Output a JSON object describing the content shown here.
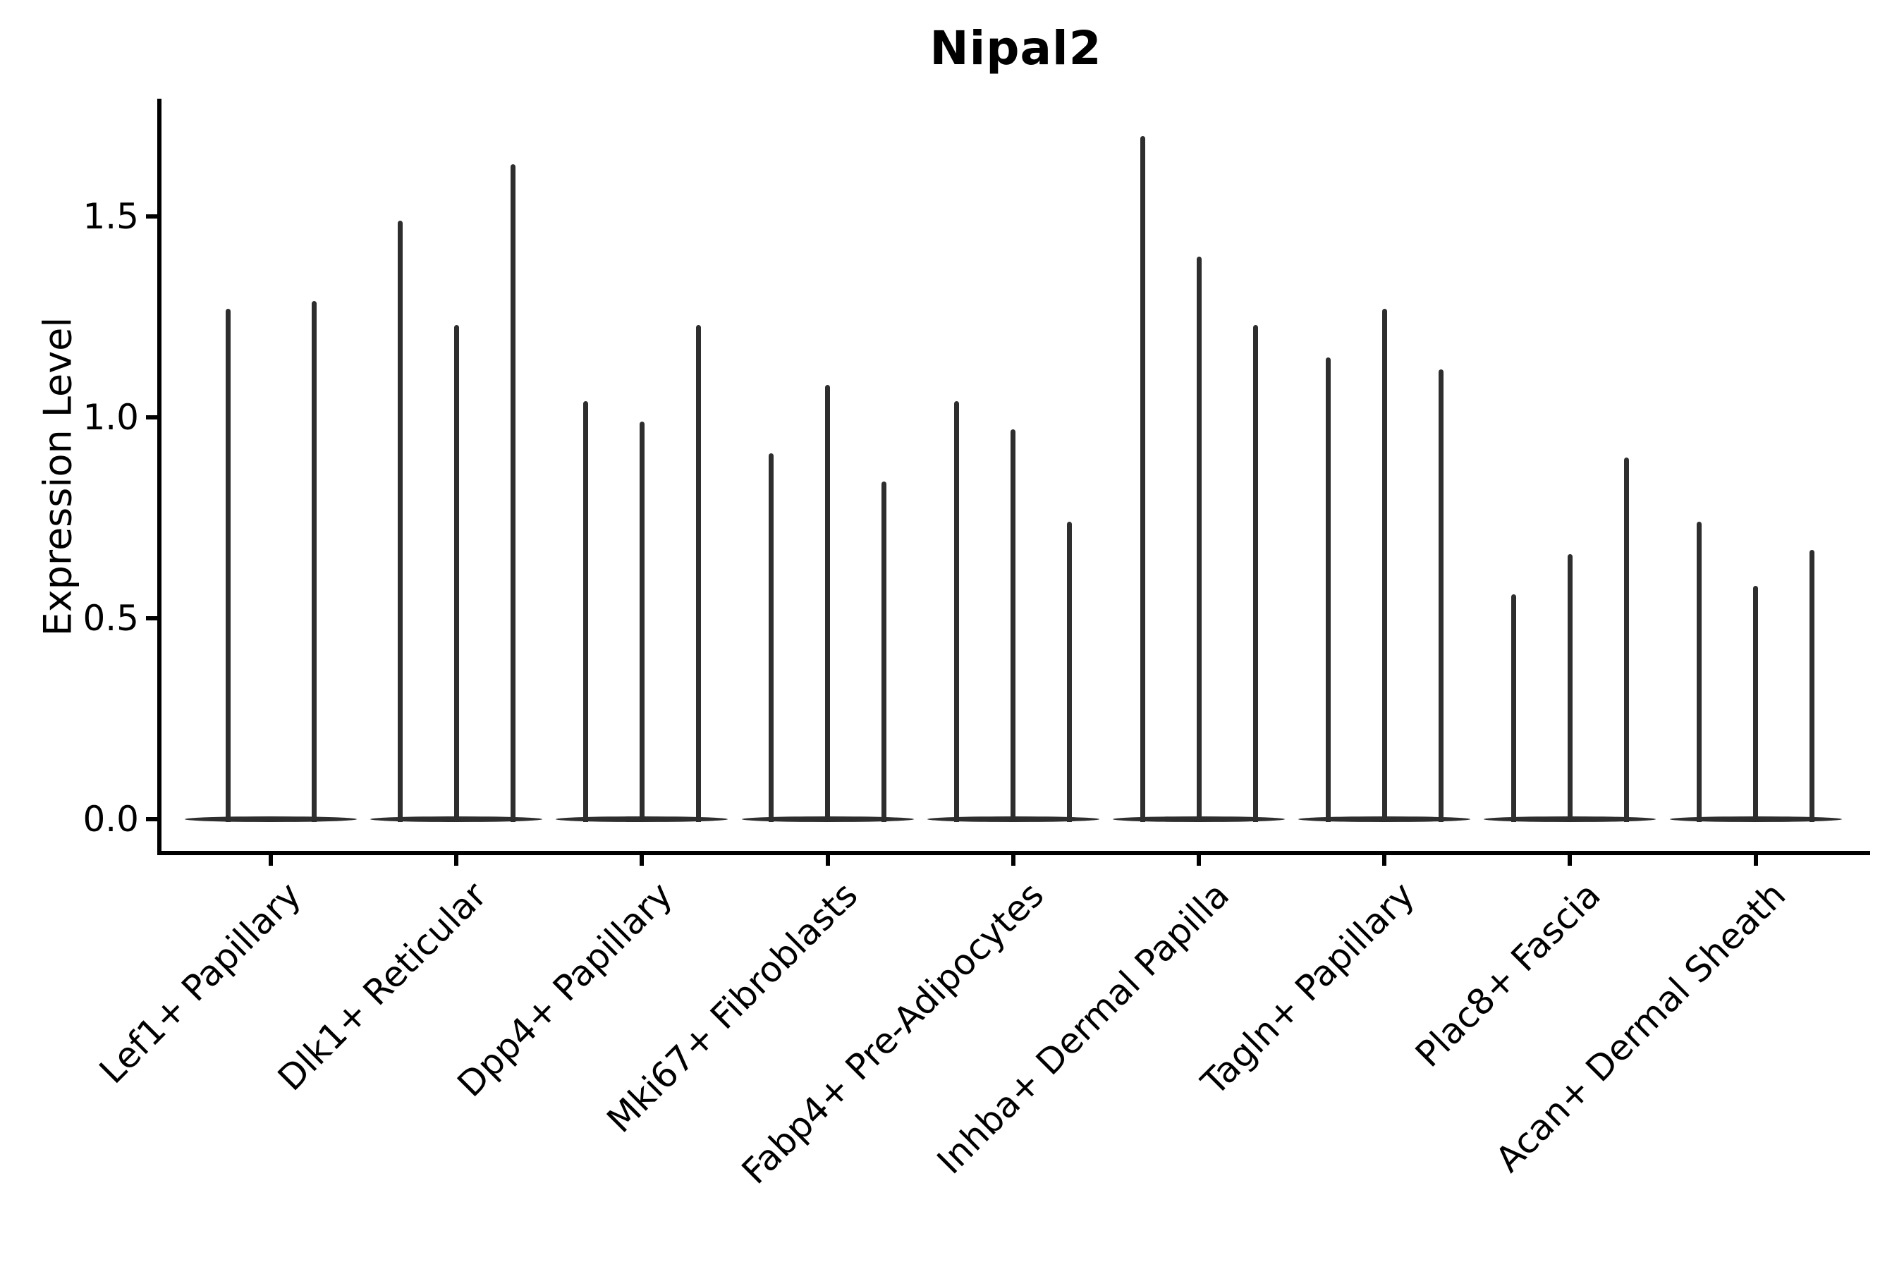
{
  "title": "Nipal2",
  "axes": {
    "ylabel": "Expression Level",
    "ytick_labels": [
      "0.0",
      "0.5",
      "1.0",
      "1.5"
    ]
  },
  "chart_data": {
    "type": "violin",
    "title": "Nipal2",
    "xlabel": "",
    "ylabel": "Expression Level",
    "ylim": [
      0,
      1.79
    ],
    "yticks": [
      0.0,
      0.5,
      1.0,
      1.5
    ],
    "grid": false,
    "legend_position": "none",
    "description": "Narrow spike-shaped violins (expression mostly zero with a thin tail to the max); each category shows 2-3 violins rising from a flat base at 0.",
    "categories": [
      "Lef1+ Papillary",
      "Dlk1+ Reticular",
      "Dpp4+ Papillary",
      "Mki67+ Fibroblasts",
      "Fabp4+ Pre-Adipocytes",
      "Inhba+ Dermal Papilla",
      "Tagln+ Papillary",
      "Plac8+ Fascia",
      "Acan+ Dermal Sheath"
    ],
    "groups": [
      {
        "category": "Lef1+ Papillary",
        "violin_max_values": [
          1.27,
          1.29
        ]
      },
      {
        "category": "Dlk1+ Reticular",
        "violin_max_values": [
          1.49,
          1.23,
          1.63
        ]
      },
      {
        "category": "Dpp4+ Papillary",
        "violin_max_values": [
          1.04,
          0.99,
          1.23
        ]
      },
      {
        "category": "Mki67+ Fibroblasts",
        "violin_max_values": [
          0.91,
          1.08,
          0.84
        ]
      },
      {
        "category": "Fabp4+ Pre-Adipocytes",
        "violin_max_values": [
          1.04,
          0.97,
          0.74
        ]
      },
      {
        "category": "Inhba+ Dermal Papilla",
        "violin_max_values": [
          1.7,
          1.4,
          1.23
        ]
      },
      {
        "category": "Tagln+ Papillary",
        "violin_max_values": [
          1.15,
          1.27,
          1.12
        ]
      },
      {
        "category": "Plac8+ Fascia",
        "violin_max_values": [
          0.56,
          0.66,
          0.9
        ]
      },
      {
        "category": "Acan+ Dermal Sheath",
        "violin_max_values": [
          0.74,
          0.58,
          0.67
        ]
      }
    ],
    "colors": {
      "violin": "#2e2e2e",
      "axis": "#000000",
      "background": "#ffffff"
    }
  }
}
